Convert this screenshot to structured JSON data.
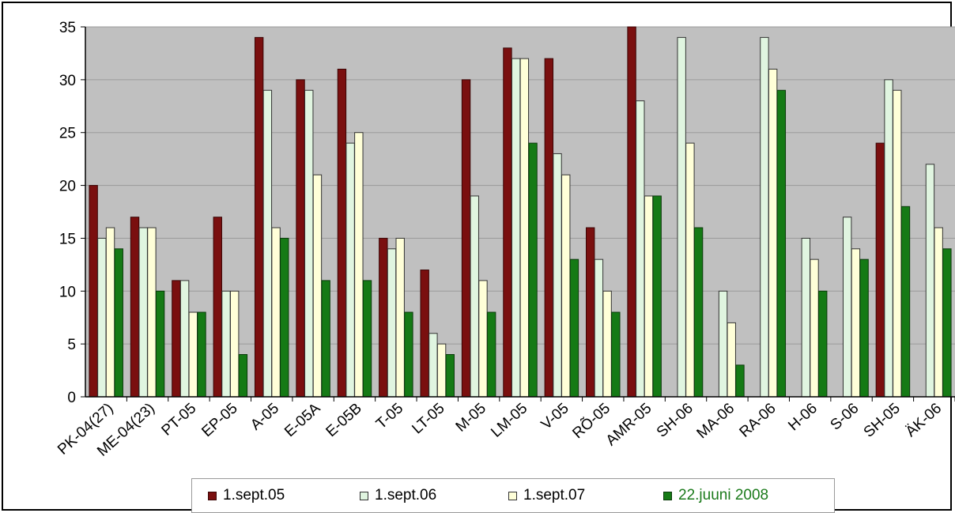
{
  "colors": {
    "plot_bg": "#c0c0c0",
    "gridline": "#9a9a9a",
    "series": [
      "#7a0f0f",
      "#e0f5e0",
      "#ffffd8",
      "#157a15"
    ],
    "series_stroke": [
      "#3a0505",
      "#333333",
      "#333333",
      "#0a3a0a"
    ],
    "legend_text": [
      "#000000",
      "#000000",
      "#000000",
      "#1a7a1a"
    ]
  },
  "chart_data": {
    "type": "bar",
    "grid": true,
    "legend_position": "bottom",
    "ylim": [
      0,
      35
    ],
    "yticks": [
      0,
      5,
      10,
      15,
      20,
      25,
      30,
      35
    ],
    "categories": [
      "PK-04(27)",
      "ME-04(23)",
      "PT-05",
      "EP-05",
      "A-05",
      "E-05A",
      "E-05B",
      "T-05",
      "LT-05",
      "M-05",
      "LM-05",
      "V-05",
      "RÕ-05",
      "AMR-05",
      "SH-06",
      "MA-06",
      "RA-06",
      "H-06",
      "S-06",
      "SH-05",
      "ÄK-06"
    ],
    "series": [
      {
        "name": "1.sept.05",
        "values": [
          20,
          17,
          11,
          17,
          34,
          30,
          31,
          15,
          12,
          30,
          33,
          32,
          16,
          35,
          null,
          null,
          null,
          null,
          null,
          24,
          null
        ]
      },
      {
        "name": "1.sept.06",
        "values": [
          15,
          16,
          11,
          10,
          29,
          29,
          24,
          14,
          6,
          19,
          32,
          23,
          13,
          28,
          34,
          10,
          34,
          15,
          17,
          30,
          22
        ]
      },
      {
        "name": "1.sept.07",
        "values": [
          16,
          16,
          8,
          10,
          16,
          21,
          25,
          15,
          5,
          11,
          32,
          21,
          10,
          19,
          24,
          7,
          31,
          13,
          14,
          29,
          16
        ]
      },
      {
        "name": "22.juuni 2008",
        "values": [
          14,
          10,
          8,
          4,
          15,
          11,
          11,
          8,
          4,
          8,
          24,
          13,
          8,
          19,
          16,
          3,
          29,
          10,
          13,
          18,
          14
        ]
      }
    ]
  }
}
